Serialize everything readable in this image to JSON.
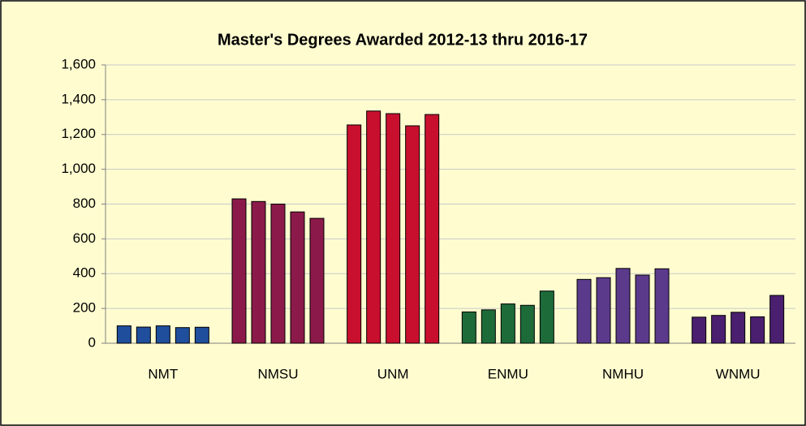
{
  "chart_data": {
    "type": "grouped-bar",
    "title": "Master's Degrees Awarded 2012-13 thru 2016-17",
    "categories": [
      "NMT",
      "NMSU",
      "UNM",
      "ENMU",
      "NMHU",
      "WNMU"
    ],
    "colors": [
      "#1f4e9c",
      "#8b1a4a",
      "#c8102e",
      "#1e6b3a",
      "#5b3a8c",
      "#4b1f6f"
    ],
    "values": [
      [
        100,
        93,
        100,
        90,
        92
      ],
      [
        830,
        815,
        800,
        755,
        718
      ],
      [
        1255,
        1335,
        1320,
        1250,
        1315
      ],
      [
        180,
        192,
        226,
        218,
        300
      ],
      [
        367,
        377,
        430,
        392,
        428
      ],
      [
        150,
        160,
        178,
        152,
        275
      ]
    ],
    "ylim": [
      0,
      1600
    ],
    "yticks": [
      0,
      200,
      400,
      600,
      800,
      {
        "value": 1000,
        "label": "1,000"
      },
      {
        "value": 1200,
        "label": "1,200"
      },
      {
        "value": 1400,
        "label": "1,400"
      },
      {
        "value": 1600,
        "label": "1,600"
      }
    ],
    "grid": true
  }
}
